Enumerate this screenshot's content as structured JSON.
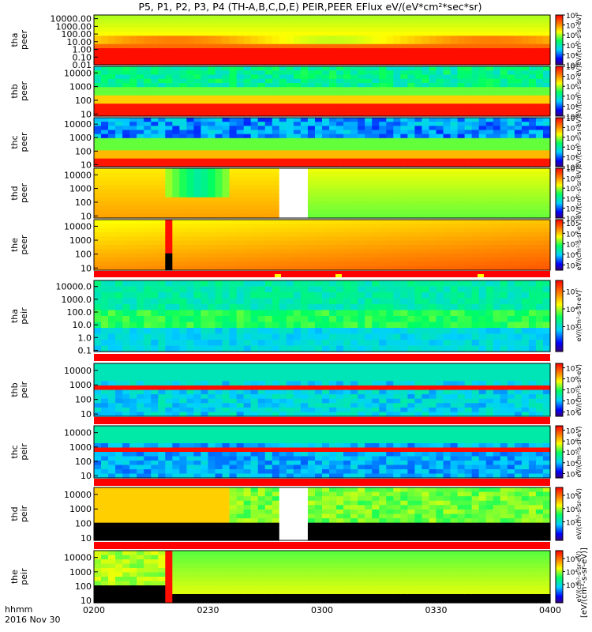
{
  "title": "P5, P1, P2, P3, P4 (TH-A,B,C,D,E) PEIR,PEER EFlux eV/(eV*cm²*sec*sr)",
  "time_axis": {
    "left_label": "hhmm",
    "date": "2016 Nov 30",
    "ticks": [
      "0200",
      "0230",
      "0300",
      "0330",
      "0400"
    ]
  },
  "colorbar_title": "[eV/(cm²-s-sr-eV)]",
  "colors": {
    "flag_red": "#ff0000",
    "flag_yellow": "#ffff00",
    "no_data": "#000000",
    "gap": "#ffffff"
  },
  "chart_data": [
    {
      "type": "heatmap",
      "probe": "tha",
      "species": "peer",
      "ylabel": "tha\npeer",
      "yscale": "log",
      "yticks": [
        "10000.00",
        "1000.00",
        "100.00",
        "10.00",
        "1.00",
        "0.10",
        "0.01"
      ],
      "ylim": [
        0.01,
        30000
      ],
      "cbar_ticks": [
        "10⁸",
        "10⁷",
        "10⁶",
        "10⁵",
        "10⁴",
        "10³"
      ],
      "cbar_range": [
        3,
        8
      ],
      "cbar_label": "eV/(cm²-s-sr-eV)"
    },
    {
      "type": "heatmap",
      "probe": "thb",
      "species": "peer",
      "ylabel": "thb\npeer",
      "yscale": "log",
      "yticks": [
        "10000",
        "1000",
        "100",
        "10"
      ],
      "ylim": [
        7,
        30000
      ],
      "cbar_ticks": [
        "10⁸",
        "10⁷",
        "10⁶",
        "10⁵",
        "10⁴",
        "10³"
      ],
      "cbar_range": [
        3,
        8
      ],
      "cbar_label": "eV/(cm²-s-sr-eV)"
    },
    {
      "type": "heatmap",
      "probe": "thc",
      "species": "peer",
      "ylabel": "thc\npeer",
      "yscale": "log",
      "yticks": [
        "10000",
        "1000",
        "100",
        "10"
      ],
      "ylim": [
        7,
        30000
      ],
      "cbar_ticks": [
        "10⁸",
        "10⁷",
        "10⁶",
        "10⁵",
        "10⁴",
        "10³"
      ],
      "cbar_range": [
        3,
        8
      ],
      "cbar_label": "eV/(cm²-s-sr-eV)"
    },
    {
      "type": "heatmap",
      "probe": "thd",
      "species": "peer",
      "ylabel": "thd\npeer",
      "yscale": "log",
      "yticks": [
        "10000",
        "1000",
        "100",
        "10"
      ],
      "ylim": [
        7,
        30000
      ],
      "cbar_ticks": [
        "10⁷",
        "10⁶",
        "10⁵",
        "10⁴",
        "10³",
        "10²"
      ],
      "cbar_range": [
        2,
        7
      ],
      "cbar_label": "eV/(cm²-s-sr-eV)"
    },
    {
      "type": "heatmap",
      "probe": "the",
      "species": "peer",
      "ylabel": "the\npeer",
      "yscale": "log",
      "yticks": [
        "10000",
        "1000",
        "100",
        "10"
      ],
      "ylim": [
        7,
        30000
      ],
      "cbar_ticks": [
        "10⁷",
        "10⁶",
        "10⁵",
        "10⁴",
        "10³"
      ],
      "cbar_range": [
        2.5,
        7.3
      ],
      "cbar_label": "eV/(cm²-s-sr-eV)"
    },
    {
      "type": "heatmap",
      "probe": "tha",
      "species": "peir",
      "ylabel": "tha\npeir",
      "yscale": "log",
      "yticks": [
        "10000.0",
        "1000.0",
        "100.0",
        "10.0",
        "1.0",
        "0.1"
      ],
      "ylim": [
        0.08,
        30000
      ],
      "cbar_ticks": [
        "10⁶",
        "10⁵",
        "10⁴",
        "10³"
      ],
      "cbar_range": [
        2.6,
        6.6
      ],
      "cbar_label": "eV/(cm²-s-sr-eV)"
    },
    {
      "type": "heatmap",
      "probe": "thb",
      "species": "peir",
      "ylabel": "thb\npeir",
      "yscale": "log",
      "yticks": [
        "10000",
        "1000",
        "100",
        "10"
      ],
      "ylim": [
        7,
        30000
      ],
      "cbar_ticks": [
        "10⁷",
        "10⁶",
        "10⁵",
        "10⁴",
        "10³"
      ],
      "cbar_range": [
        2.6,
        7.4
      ],
      "cbar_label": "eV/(cm²-s-sr-eV)"
    },
    {
      "type": "heatmap",
      "probe": "thc",
      "species": "peir",
      "ylabel": "thc\npeir",
      "yscale": "log",
      "yticks": [
        "10000",
        "1000",
        "100",
        "10"
      ],
      "ylim": [
        7,
        30000
      ],
      "cbar_ticks": [
        "10⁷",
        "10⁶",
        "10⁵",
        "10⁴",
        "10³"
      ],
      "cbar_range": [
        2.6,
        7.4
      ],
      "cbar_label": "eV/(cm²-s-sr-eV)"
    },
    {
      "type": "heatmap",
      "probe": "thd",
      "species": "peir",
      "ylabel": "thd\npeir",
      "yscale": "log",
      "yticks": [
        "10000",
        "1000",
        "100",
        "10"
      ],
      "ylim": [
        7,
        30000
      ],
      "cbar_ticks": [
        "10⁶",
        "10⁵",
        "10⁴",
        "10³"
      ],
      "cbar_range": [
        2.6,
        6.6
      ],
      "cbar_label": "eV/(cm²-s-sr-eV)"
    },
    {
      "type": "heatmap",
      "probe": "the",
      "species": "peir",
      "ylabel": "the\npeir",
      "yscale": "log",
      "yticks": [
        "10000",
        "1000",
        "100",
        "10"
      ],
      "ylim": [
        7,
        30000
      ],
      "cbar_ticks": [
        "10⁶",
        "10⁵",
        "10⁴",
        "10³"
      ],
      "cbar_range": [
        2.6,
        6.6
      ],
      "cbar_label": "eV/(cm²-s-sr-eV)"
    }
  ]
}
